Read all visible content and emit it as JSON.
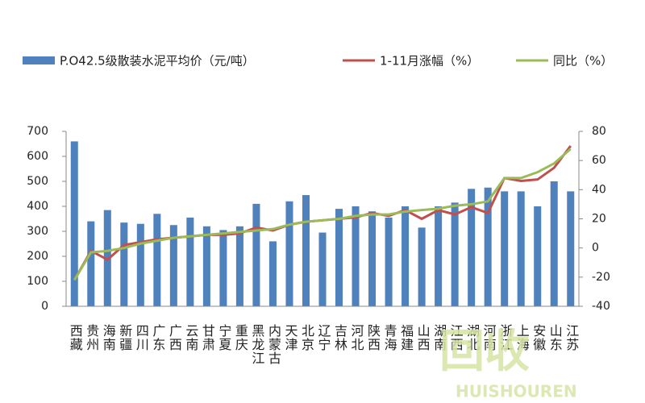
{
  "chart_data": {
    "type": "bar_line",
    "categories": [
      "西藏",
      "贵州",
      "海南",
      "新疆",
      "四川",
      "广东",
      "广西",
      "云南",
      "甘肃",
      "宁夏",
      "重庆",
      "黑龙江",
      "内蒙古",
      "天津",
      "北京",
      "辽宁",
      "吉林",
      "河北",
      "陕西",
      "青海",
      "福建",
      "山西",
      "湖南",
      "江西",
      "湖北",
      "河南",
      "浙江",
      "上海",
      "安徽",
      "山东",
      "江苏"
    ],
    "series": [
      {
        "name": "P.O42.5级散装水泥平均价（元/吨）",
        "kind": "bar",
        "color": "#4f81bd",
        "values": [
          660,
          340,
          385,
          335,
          330,
          370,
          325,
          355,
          320,
          305,
          320,
          410,
          260,
          420,
          445,
          295,
          390,
          400,
          380,
          355,
          400,
          315,
          400,
          415,
          470,
          475,
          460,
          460,
          400,
          500,
          460
        ]
      },
      {
        "name": "1-11月涨幅（%）",
        "kind": "line",
        "axis": "y2",
        "color": "#c0504d",
        "values": [
          -22,
          -2,
          -8,
          2,
          4,
          6,
          7,
          8,
          9,
          9,
          10,
          14,
          12,
          16,
          18,
          19,
          20,
          21,
          24,
          22,
          26,
          20,
          26,
          23,
          28,
          24,
          48,
          46,
          47,
          55,
          70
        ]
      },
      {
        "name": "同比（%）",
        "kind": "line",
        "axis": "y2",
        "color": "#9bbb59",
        "values": [
          -22,
          -3,
          -2,
          0,
          3,
          5,
          7,
          8,
          9,
          10,
          11,
          12,
          13,
          16,
          18,
          19,
          20,
          22,
          23,
          23,
          25,
          26,
          27,
          29,
          30,
          32,
          48,
          48,
          52,
          58,
          68
        ]
      }
    ],
    "ylim": [
      0,
      700
    ],
    "yticks": [
      0,
      100,
      200,
      300,
      400,
      500,
      600,
      700
    ],
    "y2lim": [
      -40,
      80
    ],
    "y2ticks": [
      -40,
      -20,
      0,
      20,
      40,
      60,
      80
    ],
    "watermark": {
      "mark": "回收",
      "text": "HUISHOUREN"
    }
  }
}
